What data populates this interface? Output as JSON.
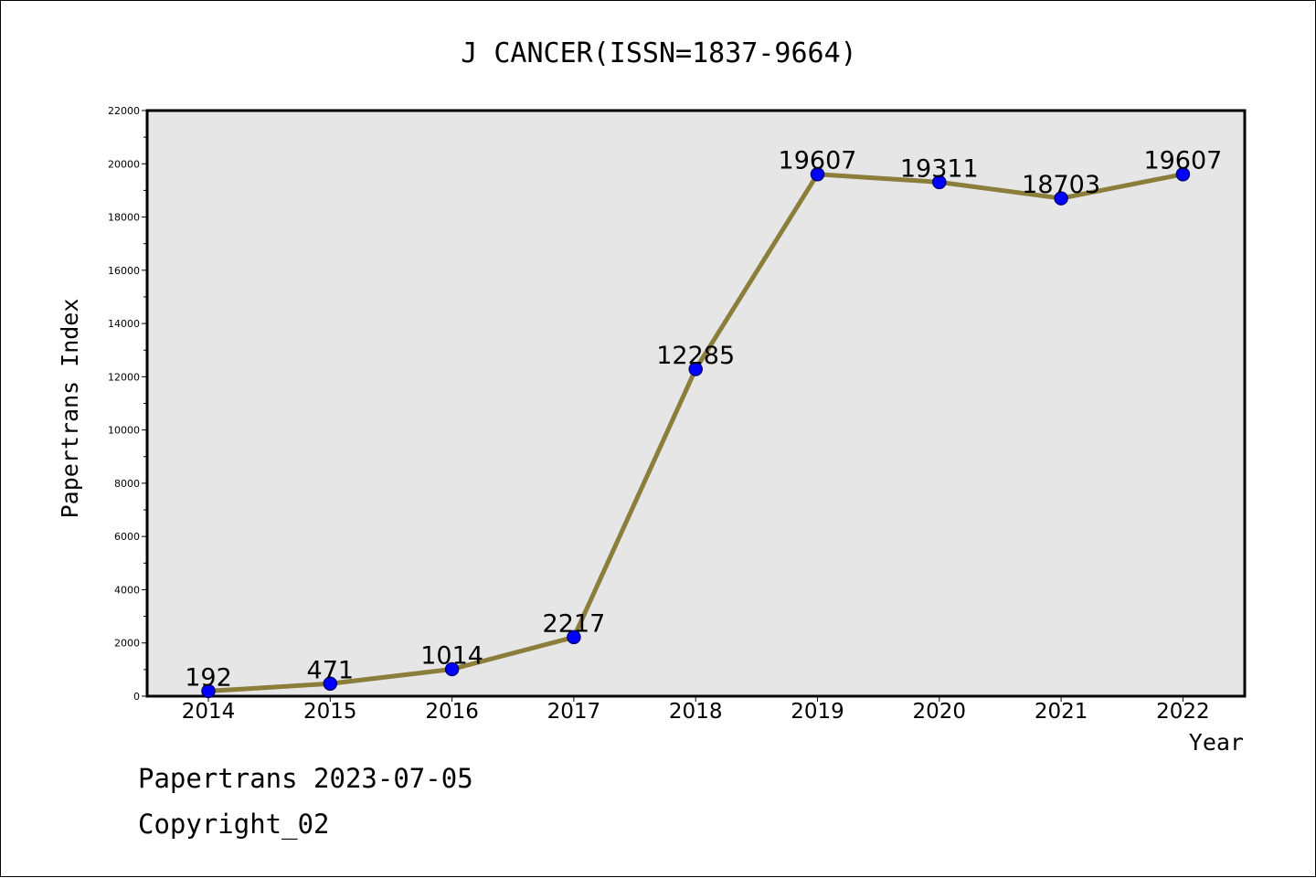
{
  "chart_data": {
    "type": "line",
    "title": "J CANCER(ISSN=1837-9664)",
    "xlabel": "Year",
    "ylabel": "Papertrans Index",
    "categories": [
      "2014",
      "2015",
      "2016",
      "2017",
      "2018",
      "2019",
      "2020",
      "2021",
      "2022"
    ],
    "series": [
      {
        "values": [
          192,
          471,
          1014,
          2217,
          12285,
          19607,
          19311,
          18703,
          19607
        ]
      }
    ],
    "data_labels": [
      "192",
      "471",
      "1014",
      "2217",
      "12285",
      "19607",
      "19311",
      "18703",
      "19607"
    ],
    "y_ticks": [
      "0",
      "2000",
      "4000",
      "6000",
      "8000",
      "10000",
      "12000",
      "14000",
      "16000",
      "18000",
      "20000",
      "22000"
    ],
    "ylim": [
      0,
      22000
    ],
    "grid": false,
    "legend": "none",
    "colors": {
      "line": "#8b7d3a",
      "marker_fill": "#0000ff",
      "marker_edge": "#000080",
      "plot_background": "#e6e6e6"
    }
  },
  "footer": {
    "line1": "Papertrans 2023-07-05",
    "line2": "Copyright_02"
  }
}
